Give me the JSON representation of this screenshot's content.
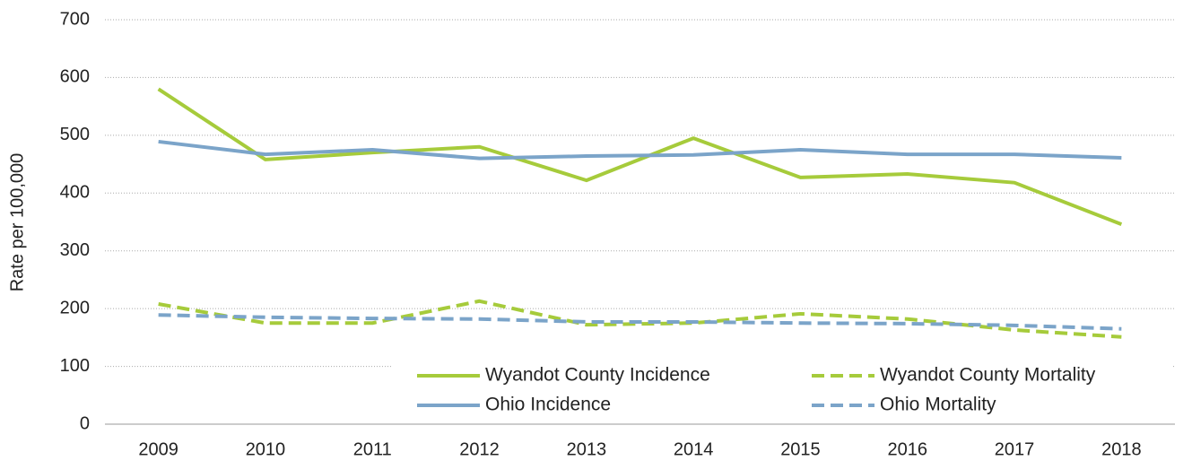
{
  "chart_data": {
    "type": "line",
    "ylabel": "Rate per 100,000",
    "categories": [
      "2009",
      "2010",
      "2011",
      "2012",
      "2013",
      "2014",
      "2015",
      "2016",
      "2017",
      "2018"
    ],
    "series": [
      {
        "name": "Wyandot County Incidence",
        "color": "#a6cb3b",
        "style": "solid",
        "values": [
          580,
          458,
          470,
          480,
          422,
          495,
          427,
          433,
          418,
          346
        ]
      },
      {
        "name": "Wyandot County Mortality",
        "color": "#a6cb3b",
        "style": "dashed",
        "values": [
          208,
          175,
          175,
          213,
          172,
          175,
          191,
          182,
          163,
          151
        ]
      },
      {
        "name": "Ohio Incidence",
        "color": "#7ba4c9",
        "style": "solid",
        "values": [
          489,
          467,
          475,
          460,
          464,
          466,
          475,
          467,
          467,
          461
        ]
      },
      {
        "name": "Ohio Mortality",
        "color": "#7ba4c9",
        "style": "dashed",
        "values": [
          189,
          185,
          183,
          182,
          177,
          177,
          175,
          174,
          171,
          165
        ]
      }
    ],
    "ylim": [
      0,
      700
    ],
    "yticks": [
      0,
      100,
      200,
      300,
      400,
      500,
      600,
      700
    ],
    "grid": true,
    "legend": "bottom-right"
  }
}
